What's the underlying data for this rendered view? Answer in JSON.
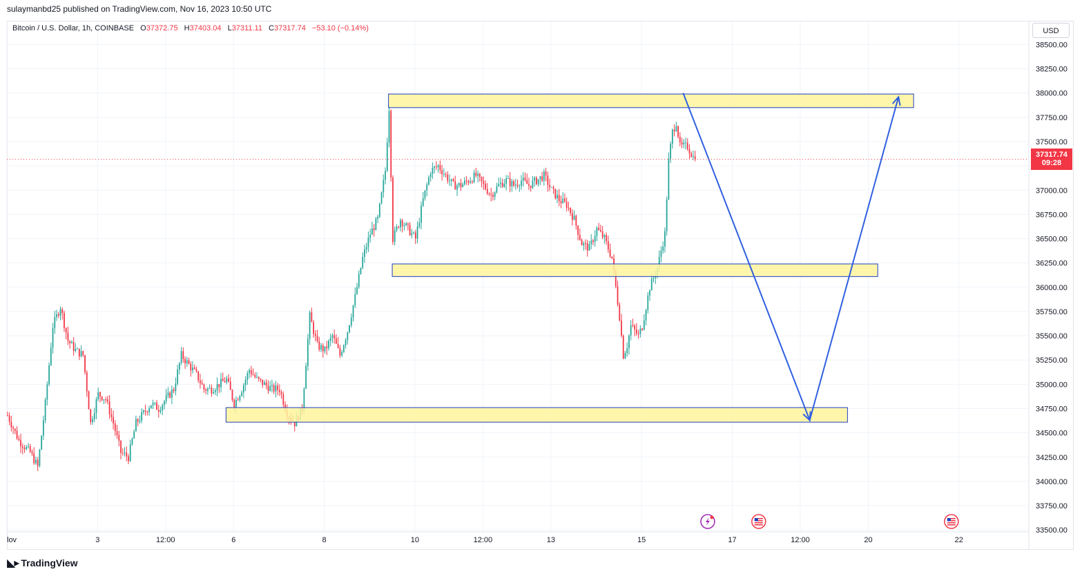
{
  "header": {
    "published_line": "sulaymanbd25 published on TradingView.com, Nov 16, 2023 10:50 UTC"
  },
  "legend": {
    "symbol": "Bitcoin / U.S. Dollar, 1h, COINBASE",
    "o_label": "O",
    "o_value": "37372.75",
    "h_label": "H",
    "h_value": "37403.04",
    "l_label": "L",
    "l_value": "37311.11",
    "c_label": "C",
    "c_value": "37317.74",
    "change": "−53.10 (−0.14%)"
  },
  "currency_button": "USD",
  "last_price": {
    "price": "37317.74",
    "countdown": "09:28"
  },
  "branding": {
    "name": "TradingView"
  },
  "colors": {
    "up": "#26a69a",
    "down": "#f23645",
    "zone_fill": "#fff59d",
    "zone_border": "#1e3fbf",
    "arrow": "#2f5fe0",
    "grid": "#f0f3fa"
  },
  "icons": [
    "earnings-lightning-icon",
    "us-flag-event-icon",
    "us-flag-event-icon"
  ],
  "chart_data": {
    "type": "candlestick",
    "y_axis": {
      "ticks": [
        33500,
        33750,
        34000,
        34250,
        34500,
        34750,
        35000,
        35250,
        35500,
        35750,
        36000,
        36250,
        36500,
        36750,
        37000,
        37250,
        37500,
        37750,
        38000,
        38250,
        38500
      ],
      "tick_labels": [
        "33500.00",
        "33750.00",
        "34000.00",
        "34250.00",
        "34500.00",
        "34750.00",
        "35000.00",
        "35250.00",
        "35500.00",
        "35750.00",
        "36000.00",
        "36250.00",
        "36500.00",
        "36750.00",
        "37000.00",
        "37250.00",
        "37500.00",
        "37750.00",
        "38000.00",
        "38250.00",
        "38500.00"
      ],
      "range": [
        33480,
        38560
      ]
    },
    "x_axis": {
      "labels": [
        "lov",
        "3",
        "12:00",
        "6",
        "8",
        "10",
        "12:00",
        "13",
        "15",
        "17",
        "12:00",
        "20",
        "22"
      ],
      "ticks_hours": [
        0,
        48,
        84,
        120,
        168,
        216,
        252,
        288,
        336,
        384,
        420,
        456,
        504
      ],
      "range_hours": [
        0,
        541
      ]
    },
    "last_price": 37317.74,
    "price_path": [
      [
        0,
        34680
      ],
      [
        6,
        34420
      ],
      [
        12,
        34300
      ],
      [
        16,
        34150
      ],
      [
        20,
        34800
      ],
      [
        24,
        35600
      ],
      [
        28,
        35800
      ],
      [
        32,
        35450
      ],
      [
        36,
        35350
      ],
      [
        40,
        35300
      ],
      [
        44,
        34600
      ],
      [
        48,
        34900
      ],
      [
        52,
        34850
      ],
      [
        56,
        34600
      ],
      [
        60,
        34300
      ],
      [
        64,
        34250
      ],
      [
        68,
        34600
      ],
      [
        72,
        34700
      ],
      [
        76,
        34800
      ],
      [
        80,
        34750
      ],
      [
        84,
        34850
      ],
      [
        88,
        34950
      ],
      [
        92,
        35300
      ],
      [
        96,
        35200
      ],
      [
        100,
        35100
      ],
      [
        104,
        34950
      ],
      [
        108,
        34950
      ],
      [
        112,
        35000
      ],
      [
        116,
        35050
      ],
      [
        120,
        34800
      ],
      [
        124,
        34950
      ],
      [
        128,
        35150
      ],
      [
        132,
        35050
      ],
      [
        136,
        35000
      ],
      [
        140,
        34950
      ],
      [
        144,
        34950
      ],
      [
        148,
        34700
      ],
      [
        152,
        34600
      ],
      [
        156,
        34750
      ],
      [
        160,
        35700
      ],
      [
        164,
        35400
      ],
      [
        168,
        35350
      ],
      [
        172,
        35500
      ],
      [
        176,
        35300
      ],
      [
        180,
        35550
      ],
      [
        184,
        35900
      ],
      [
        188,
        36300
      ],
      [
        192,
        36550
      ],
      [
        196,
        36700
      ],
      [
        200,
        37200
      ],
      [
        202,
        37850
      ],
      [
        204,
        36500
      ],
      [
        206,
        36600
      ],
      [
        208,
        36700
      ],
      [
        212,
        36600
      ],
      [
        216,
        36500
      ],
      [
        220,
        36900
      ],
      [
        224,
        37200
      ],
      [
        228,
        37250
      ],
      [
        232,
        37150
      ],
      [
        236,
        37050
      ],
      [
        240,
        37050
      ],
      [
        244,
        37100
      ],
      [
        248,
        37150
      ],
      [
        252,
        37050
      ],
      [
        256,
        36950
      ],
      [
        260,
        37050
      ],
      [
        264,
        37100
      ],
      [
        268,
        37050
      ],
      [
        272,
        37100
      ],
      [
        276,
        37050
      ],
      [
        280,
        37100
      ],
      [
        284,
        37150
      ],
      [
        288,
        37000
      ],
      [
        292,
        36900
      ],
      [
        296,
        36850
      ],
      [
        300,
        36700
      ],
      [
        304,
        36450
      ],
      [
        308,
        36400
      ],
      [
        312,
        36600
      ],
      [
        316,
        36500
      ],
      [
        320,
        36300
      ],
      [
        324,
        35700
      ],
      [
        326,
        35300
      ],
      [
        328,
        35400
      ],
      [
        330,
        35600
      ],
      [
        334,
        35500
      ],
      [
        336,
        35600
      ],
      [
        340,
        36000
      ],
      [
        344,
        36200
      ],
      [
        348,
        36550
      ],
      [
        350,
        37300
      ],
      [
        352,
        37600
      ],
      [
        354,
        37700
      ],
      [
        356,
        37450
      ],
      [
        360,
        37450
      ],
      [
        364,
        37300
      ]
    ],
    "zones": [
      {
        "x_start": 202,
        "x_end": 480,
        "y_low": 37850,
        "y_high": 37990
      },
      {
        "x_start": 204,
        "x_end": 461,
        "y_low": 36110,
        "y_high": 36240
      },
      {
        "x_start": 116,
        "x_end": 445,
        "y_low": 34610,
        "y_high": 34760
      }
    ],
    "arrow_path": [
      [
        358,
        38000
      ],
      [
        425,
        34630
      ],
      [
        472,
        37960
      ]
    ],
    "event_icons": [
      {
        "x_hours": 371,
        "kind": "earnings"
      },
      {
        "x_hours": 398,
        "kind": "us-flag"
      },
      {
        "x_hours": 500,
        "kind": "us-flag"
      }
    ]
  }
}
